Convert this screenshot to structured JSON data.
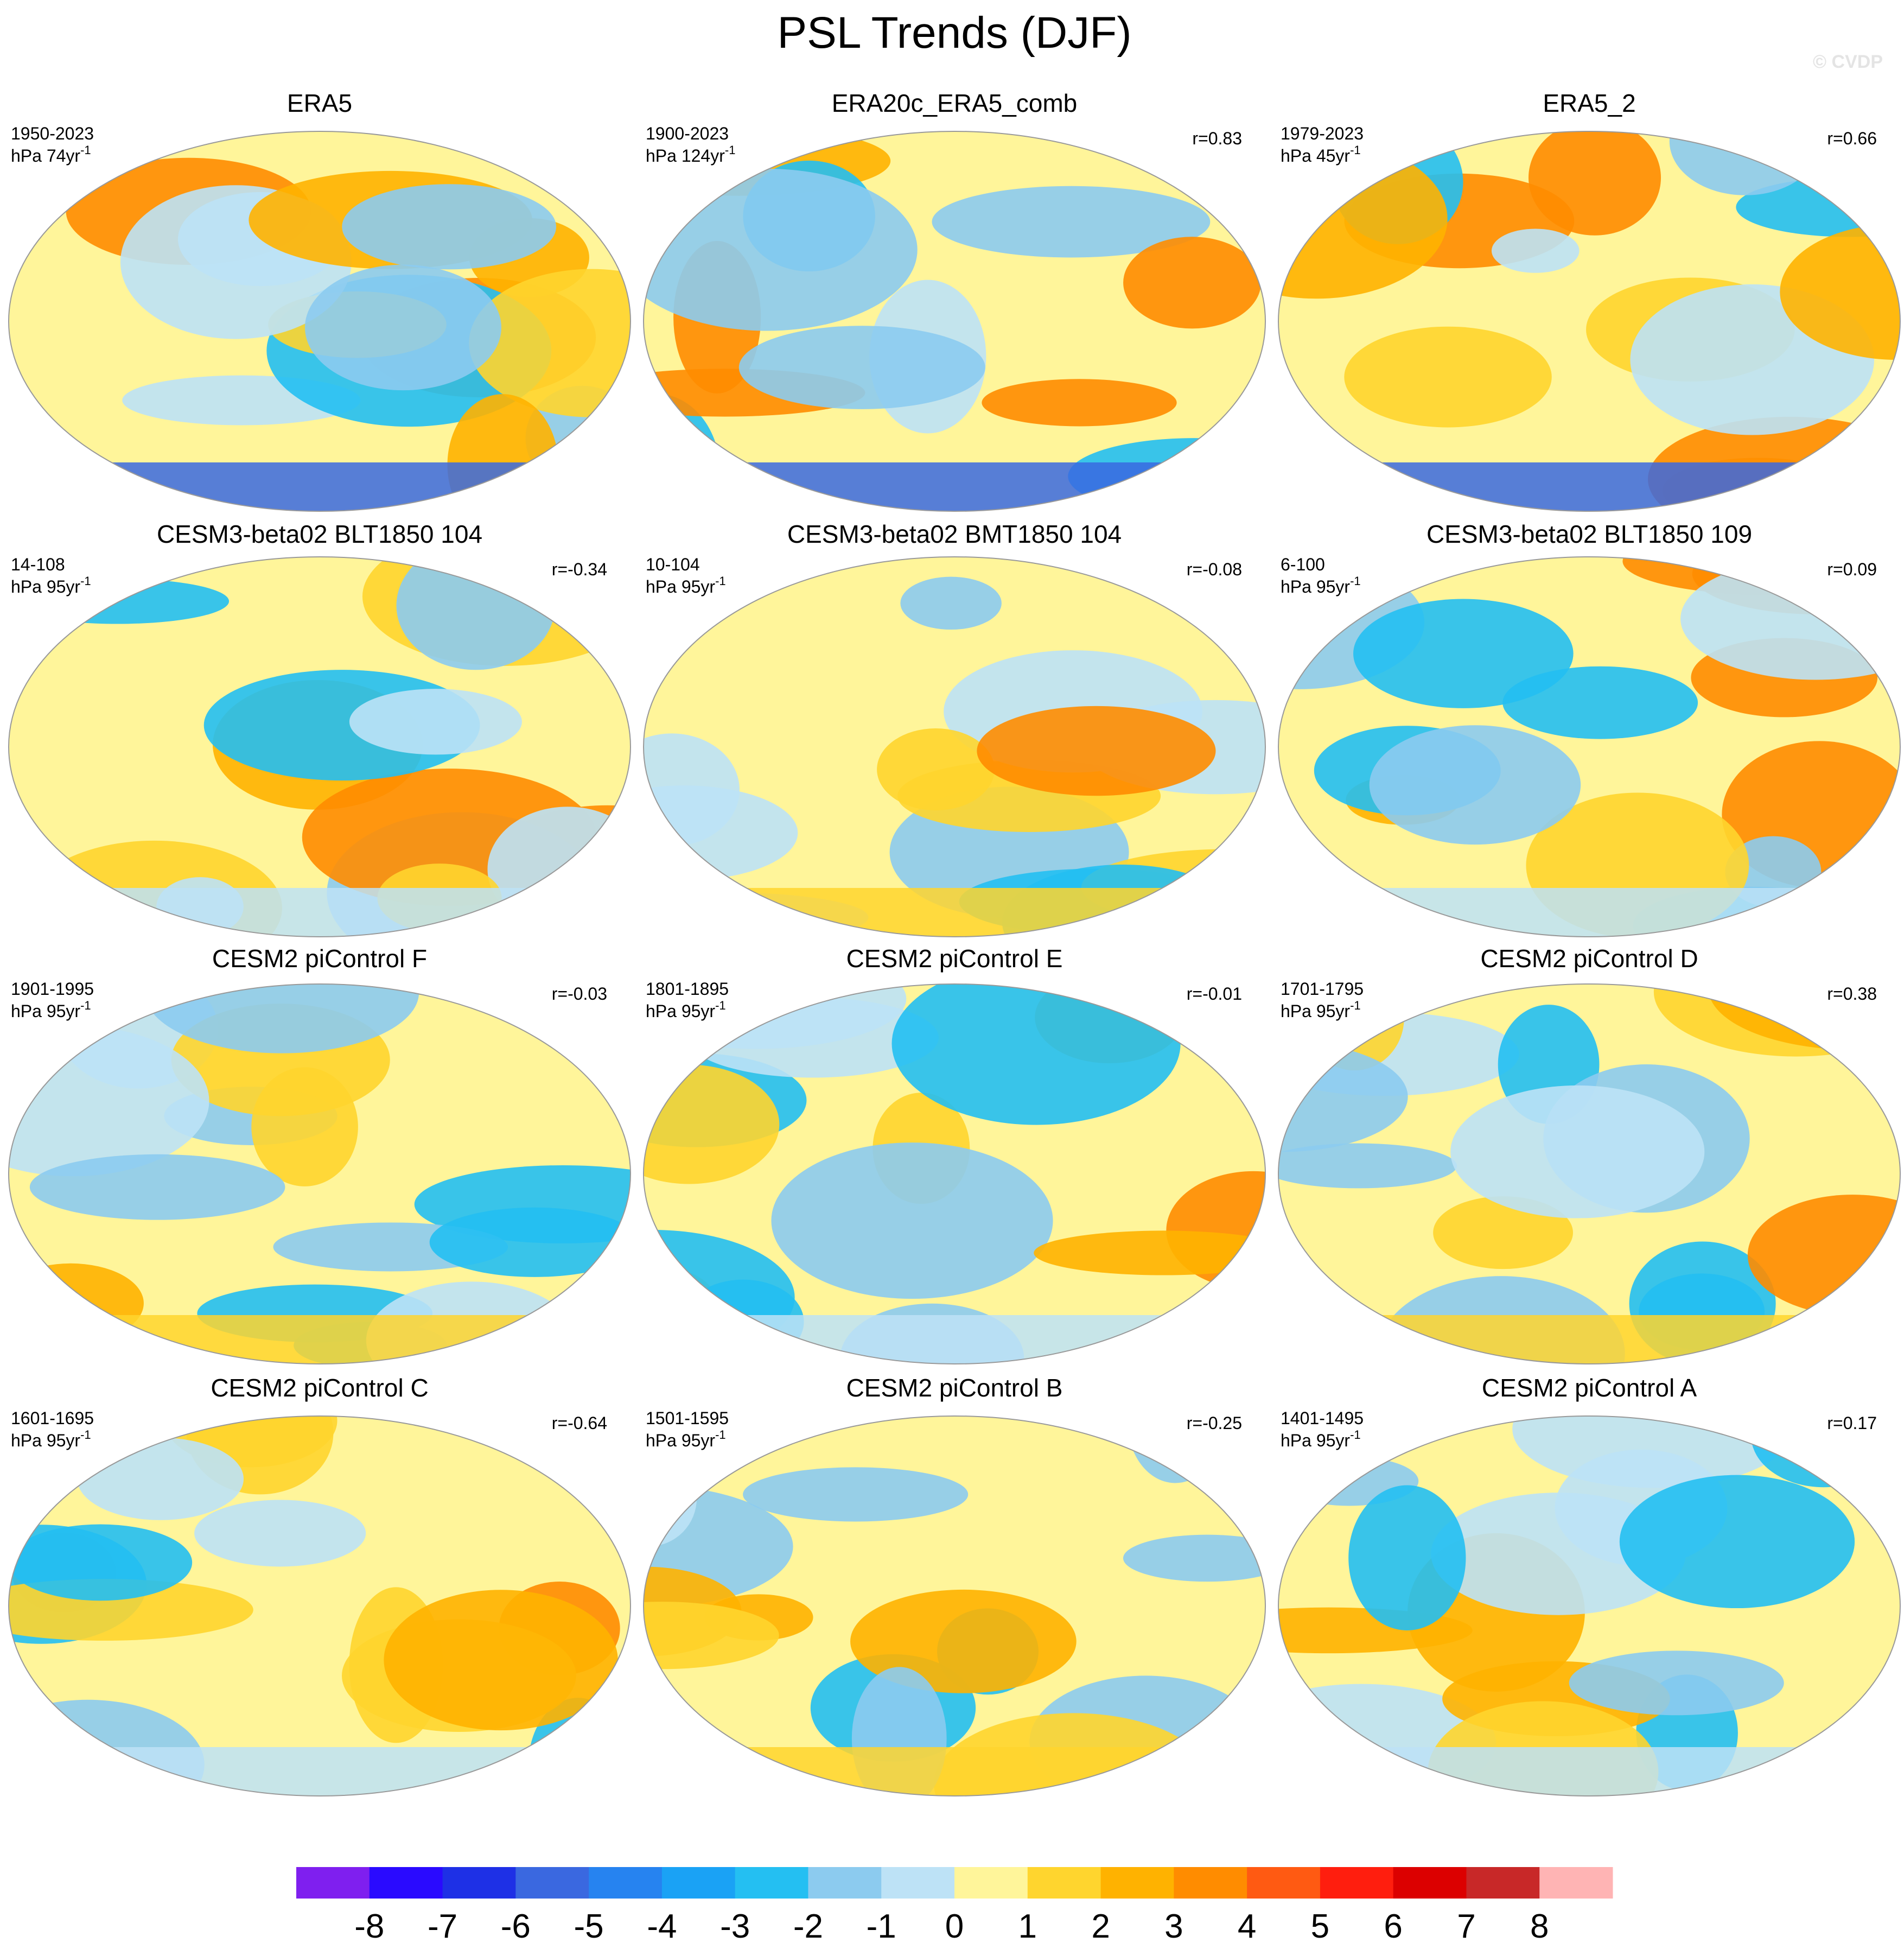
{
  "title": "PSL Trends (DJF)",
  "watermark": "© CVDP",
  "panels": [
    {
      "title": "ERA5",
      "period": "1950-2023",
      "units": "hPa 74yr",
      "exponent": "-1"
    },
    {
      "title": "ERA20c_ERA5_comb",
      "period": "1900-2023",
      "units": "hPa 124yr",
      "exponent": "-1",
      "r": "r=0.83"
    },
    {
      "title": "ERA5_2",
      "period": "1979-2023",
      "units": "hPa 45yr",
      "exponent": "-1",
      "r": "r=0.66"
    },
    {
      "title": "CESM3-beta02 BLT1850 104",
      "period": "14-108",
      "units": "hPa 95yr",
      "exponent": "-1",
      "r": "r=-0.34"
    },
    {
      "title": "CESM3-beta02 BMT1850 104",
      "period": "10-104",
      "units": "hPa 95yr",
      "exponent": "-1",
      "r": "r=-0.08"
    },
    {
      "title": "CESM3-beta02 BLT1850 109",
      "period": "6-100",
      "units": "hPa 95yr",
      "exponent": "-1",
      "r": "r=0.09"
    },
    {
      "title": "CESM2 piControl F",
      "period": "1901-1995",
      "units": "hPa 95yr",
      "exponent": "-1",
      "r": "r=-0.03"
    },
    {
      "title": "CESM2 piControl E",
      "period": "1801-1895",
      "units": "hPa 95yr",
      "exponent": "-1",
      "r": "r=-0.01"
    },
    {
      "title": "CESM2 piControl D",
      "period": "1701-1795",
      "units": "hPa 95yr",
      "exponent": "-1",
      "r": "r=0.38"
    },
    {
      "title": "CESM2 piControl C",
      "period": "1601-1695",
      "units": "hPa 95yr",
      "exponent": "-1",
      "r": "r=-0.64"
    },
    {
      "title": "CESM2 piControl B",
      "period": "1501-1595",
      "units": "hPa 95yr",
      "exponent": "-1",
      "r": "r=-0.25"
    },
    {
      "title": "CESM2 piControl A",
      "period": "1401-1495",
      "units": "hPa 95yr",
      "exponent": "-1",
      "r": "r=0.17"
    }
  ],
  "colorbar": {
    "colors": [
      "#7f1fef",
      "#2a0aff",
      "#1e30e6",
      "#3a68e0",
      "#2683f0",
      "#1aa2f5",
      "#24bff2",
      "#8ccbef",
      "#bde2f6",
      "#fff59a",
      "#ffd52e",
      "#ffb200",
      "#ff8c00",
      "#ff5a12",
      "#ff1e0e",
      "#dc0000",
      "#c82828",
      "#ffb4b4"
    ],
    "ticks": [
      -8,
      -7,
      -6,
      -5,
      -4,
      -3,
      -2,
      -1,
      0,
      1,
      2,
      3,
      4,
      5,
      6,
      7,
      8
    ]
  }
}
